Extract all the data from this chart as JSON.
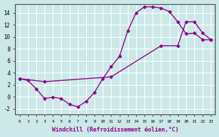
{
  "background_color": "#cce8e8",
  "grid_color": "#ffffff",
  "line_color": "#8b008b",
  "marker_style": "D",
  "marker_size": 2.5,
  "line_width": 1.0,
  "xlabel": "Windchill (Refroidissement éolien,°C)",
  "xlabel_fontsize": 6,
  "xlim": [
    -0.5,
    23.5
  ],
  "ylim": [
    -3.0,
    15.5
  ],
  "yticks": [
    -2,
    0,
    2,
    4,
    6,
    8,
    10,
    12,
    14
  ],
  "xticks": [
    0,
    1,
    2,
    3,
    4,
    5,
    6,
    7,
    8,
    9,
    10,
    11,
    12,
    13,
    14,
    15,
    16,
    17,
    18,
    19,
    20,
    21,
    22,
    23
  ],
  "series1_x": [
    0,
    1,
    2,
    3,
    4,
    5,
    6,
    7,
    8,
    9,
    10,
    11,
    12,
    13,
    14,
    15,
    16,
    17,
    18,
    19,
    20,
    21,
    22,
    23
  ],
  "series1_y": [
    3.0,
    2.7,
    1.3,
    -0.3,
    -0.1,
    -0.3,
    -1.3,
    -1.7,
    -0.8,
    0.7,
    3.0,
    5.0,
    6.7,
    11.0,
    14.0,
    15.0,
    15.0,
    14.8,
    14.2,
    12.5,
    10.5,
    10.6,
    9.5,
    9.5
  ],
  "series2_x": [
    0,
    3,
    11,
    17,
    19,
    20,
    21,
    22,
    23
  ],
  "series2_y": [
    3.0,
    2.5,
    3.3,
    8.5,
    8.5,
    12.5,
    12.5,
    10.6,
    9.5
  ]
}
